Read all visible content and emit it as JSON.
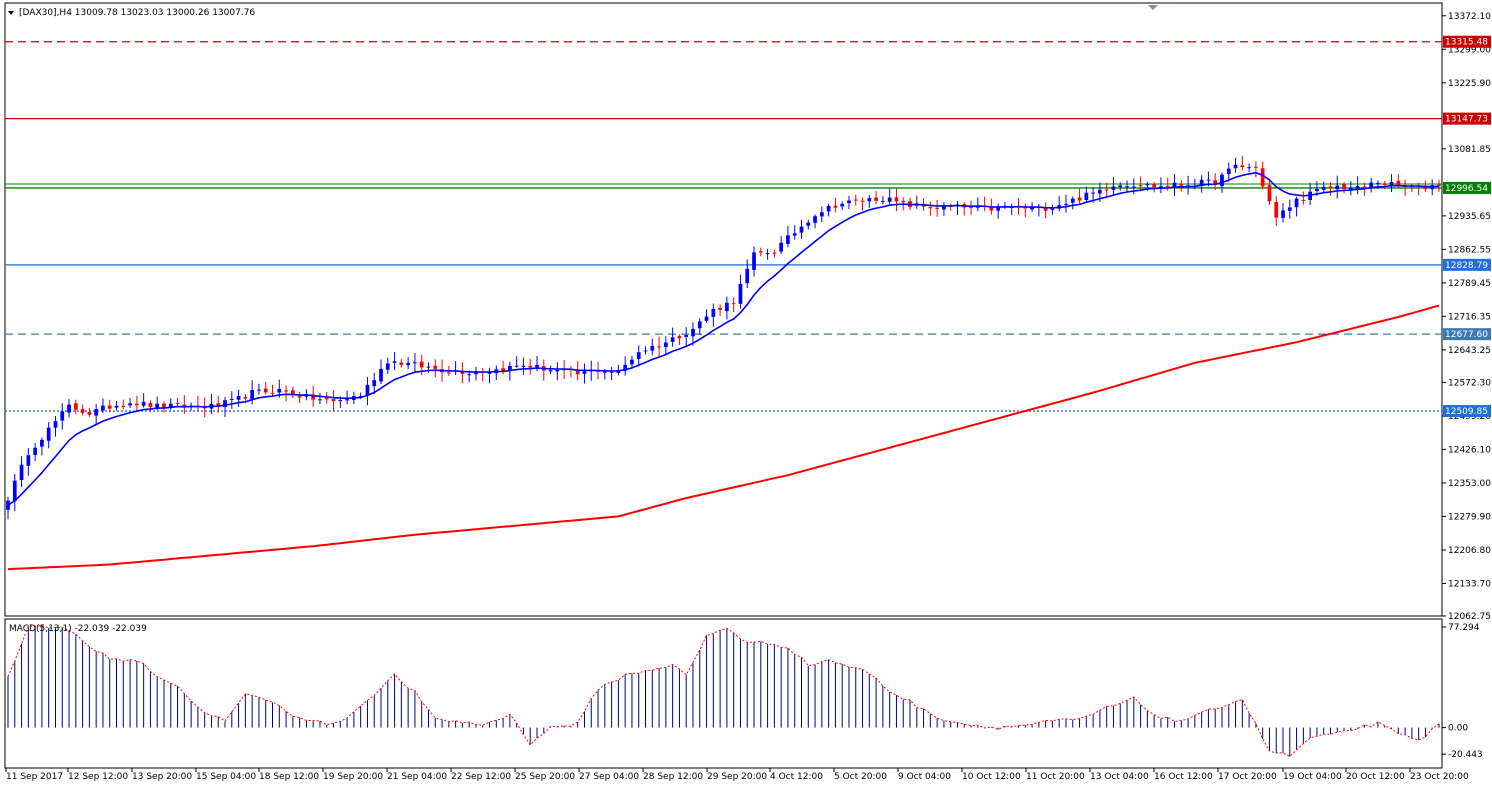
{
  "header": {
    "symbol": "[DAX30],H4",
    "ohlc": "13009.78 13023.03 13000.26 13007.76"
  },
  "macd": {
    "label": "MACD(5,13,1) -22.039 -22.039",
    "axis_labels": [
      "77.294",
      "0.00",
      "-20.443"
    ],
    "axis_values": [
      77.294,
      0.0,
      -20.443
    ]
  },
  "colors": {
    "bull": "#0000ff",
    "bear": "#ff0000",
    "ma_fast": "#0000ff",
    "ma_slow": "#ff0000",
    "frame": "#000000",
    "macd_hist": "#000080",
    "macd_signal": "#ff0000",
    "resistance_dashed": "#cc0000",
    "resistance": "#cc0000",
    "price_line": "#008000",
    "support": "#1e6fd9",
    "support_dashed": "#3c7ab5",
    "support_dotted": "#1e6fd9"
  },
  "chart_data": {
    "type": "candlestick",
    "title": "[DAX30],H4",
    "ylim": [
      12062.75,
      13400
    ],
    "y_ticks": [
      13372.1,
      13299.0,
      13225.9,
      13081.85,
      12935.65,
      12862.55,
      12789.45,
      12716.35,
      12643.25,
      12572.3,
      12499.2,
      12426.1,
      12353.0,
      12279.9,
      12206.8,
      12133.7,
      12062.75
    ],
    "y_tick_labels": [
      "13372.10",
      "13299.00",
      "13225.90",
      "13081.85",
      "12935.65",
      "12862.55",
      "12789.45",
      "12716.35",
      "12643.25",
      "12572.30",
      "12499.20",
      "12426.10",
      "12353.00",
      "12279.90",
      "12206.80",
      "12133.70",
      "12062.75"
    ],
    "x_tick_labels": [
      "11 Sep 2017",
      "12 Sep 12:00",
      "13 Sep 20:00",
      "15 Sep 04:00",
      "18 Sep 12:00",
      "19 Sep 20:00",
      "21 Sep 04:00",
      "22 Sep 12:00",
      "25 Sep 20:00",
      "27 Sep 04:00",
      "28 Sep 12:00",
      "29 Sep 20:00",
      "4 Oct 12:00",
      "5 Oct 20:00",
      "9 Oct 04:00",
      "10 Oct 12:00",
      "11 Oct 20:00",
      "13 Oct 04:00",
      "16 Oct 12:00",
      "17 Oct 20:00",
      "19 Oct 04:00",
      "20 Oct 12:00",
      "23 Oct 20:00"
    ],
    "levels": [
      {
        "value": 13315.48,
        "label": "13315.48",
        "style": "dashed",
        "color": "#cc0000"
      },
      {
        "value": 13147.73,
        "label": "13147.73",
        "style": "solid",
        "color": "#cc0000"
      },
      {
        "value": 12996.54,
        "label": "12996.54",
        "style": "solid",
        "color": "#008000"
      },
      {
        "value": 12828.79,
        "label": "12828.79",
        "style": "solid",
        "color": "#1e6fd9"
      },
      {
        "value": 12677.6,
        "label": "12677.60",
        "style": "dashed",
        "color": "#3c7ab5"
      },
      {
        "value": 12509.85,
        "label": "12509.85",
        "style": "dotted",
        "color": "#1e6fd9"
      }
    ],
    "close_keypoints": [
      [
        0,
        12320
      ],
      [
        3,
        12420
      ],
      [
        6,
        12470
      ],
      [
        9,
        12520
      ],
      [
        12,
        12505
      ],
      [
        15,
        12520
      ],
      [
        18,
        12530
      ],
      [
        22,
        12520
      ],
      [
        26,
        12520
      ],
      [
        30,
        12520
      ],
      [
        33,
        12530
      ],
      [
        36,
        12550
      ],
      [
        40,
        12555
      ],
      [
        44,
        12540
      ],
      [
        48,
        12530
      ],
      [
        52,
        12545
      ],
      [
        56,
        12620
      ],
      [
        60,
        12610
      ],
      [
        64,
        12600
      ],
      [
        68,
        12595
      ],
      [
        72,
        12600
      ],
      [
        76,
        12610
      ],
      [
        80,
        12600
      ],
      [
        84,
        12590
      ],
      [
        87,
        12600
      ],
      [
        90,
        12595
      ],
      [
        93,
        12640
      ],
      [
        97,
        12660
      ],
      [
        101,
        12690
      ],
      [
        104,
        12730
      ],
      [
        107,
        12750
      ],
      [
        110,
        12850
      ],
      [
        113,
        12860
      ],
      [
        116,
        12900
      ],
      [
        119,
        12940
      ],
      [
        122,
        12960
      ],
      [
        126,
        12970
      ],
      [
        129,
        12975
      ],
      [
        132,
        12960
      ],
      [
        136,
        12955
      ],
      [
        140,
        12955
      ],
      [
        144,
        12950
      ],
      [
        148,
        12955
      ],
      [
        152,
        12950
      ],
      [
        156,
        12965
      ],
      [
        160,
        12985
      ],
      [
        163,
        13005
      ],
      [
        166,
        13005
      ],
      [
        170,
        13000
      ],
      [
        174,
        13005
      ],
      [
        178,
        13010
      ],
      [
        181,
        13045
      ],
      [
        184,
        13040
      ],
      [
        187,
        12930
      ],
      [
        190,
        12970
      ],
      [
        193,
        12990
      ],
      [
        196,
        13000
      ],
      [
        199,
        12995
      ],
      [
        202,
        13010
      ],
      [
        205,
        13000
      ],
      [
        208,
        12995
      ],
      [
        211,
        13005
      ]
    ],
    "ma_slow_keypoints": [
      [
        0,
        12165
      ],
      [
        15,
        12175
      ],
      [
        30,
        12195
      ],
      [
        45,
        12215
      ],
      [
        60,
        12240
      ],
      [
        75,
        12260
      ],
      [
        90,
        12280
      ],
      [
        100,
        12320
      ],
      [
        115,
        12370
      ],
      [
        130,
        12430
      ],
      [
        145,
        12490
      ],
      [
        160,
        12550
      ],
      [
        175,
        12615
      ],
      [
        190,
        12660
      ],
      [
        205,
        12715
      ],
      [
        211,
        12740
      ]
    ],
    "macd_keypoints": [
      [
        0,
        40
      ],
      [
        3,
        77
      ],
      [
        6,
        77
      ],
      [
        8,
        77
      ],
      [
        10,
        72
      ],
      [
        13,
        58
      ],
      [
        16,
        52
      ],
      [
        19,
        52
      ],
      [
        22,
        40
      ],
      [
        25,
        32
      ],
      [
        28,
        15
      ],
      [
        32,
        5
      ],
      [
        35,
        25
      ],
      [
        38,
        22
      ],
      [
        42,
        10
      ],
      [
        45,
        5
      ],
      [
        48,
        2
      ],
      [
        51,
        12
      ],
      [
        54,
        26
      ],
      [
        57,
        40
      ],
      [
        60,
        27
      ],
      [
        63,
        6
      ],
      [
        66,
        5
      ],
      [
        70,
        2
      ],
      [
        74,
        10
      ],
      [
        77,
        -12
      ],
      [
        80,
        0
      ],
      [
        84,
        3
      ],
      [
        87,
        30
      ],
      [
        91,
        40
      ],
      [
        95,
        45
      ],
      [
        98,
        48
      ],
      [
        100,
        40
      ],
      [
        103,
        70
      ],
      [
        106,
        77
      ],
      [
        109,
        65
      ],
      [
        112,
        65
      ],
      [
        115,
        62
      ],
      [
        118,
        48
      ],
      [
        121,
        52
      ],
      [
        124,
        47
      ],
      [
        127,
        42
      ],
      [
        130,
        28
      ],
      [
        133,
        20
      ],
      [
        136,
        10
      ],
      [
        139,
        5
      ],
      [
        142,
        2
      ],
      [
        146,
        0
      ],
      [
        150,
        2
      ],
      [
        154,
        5
      ],
      [
        158,
        6
      ],
      [
        162,
        15
      ],
      [
        166,
        22
      ],
      [
        169,
        10
      ],
      [
        172,
        5
      ],
      [
        175,
        8
      ],
      [
        178,
        15
      ],
      [
        182,
        22
      ],
      [
        186,
        -18
      ],
      [
        189,
        -22
      ],
      [
        192,
        -8
      ],
      [
        196,
        -5
      ],
      [
        199,
        0
      ],
      [
        202,
        3
      ],
      [
        205,
        -5
      ],
      [
        208,
        -10
      ],
      [
        211,
        2
      ]
    ]
  }
}
